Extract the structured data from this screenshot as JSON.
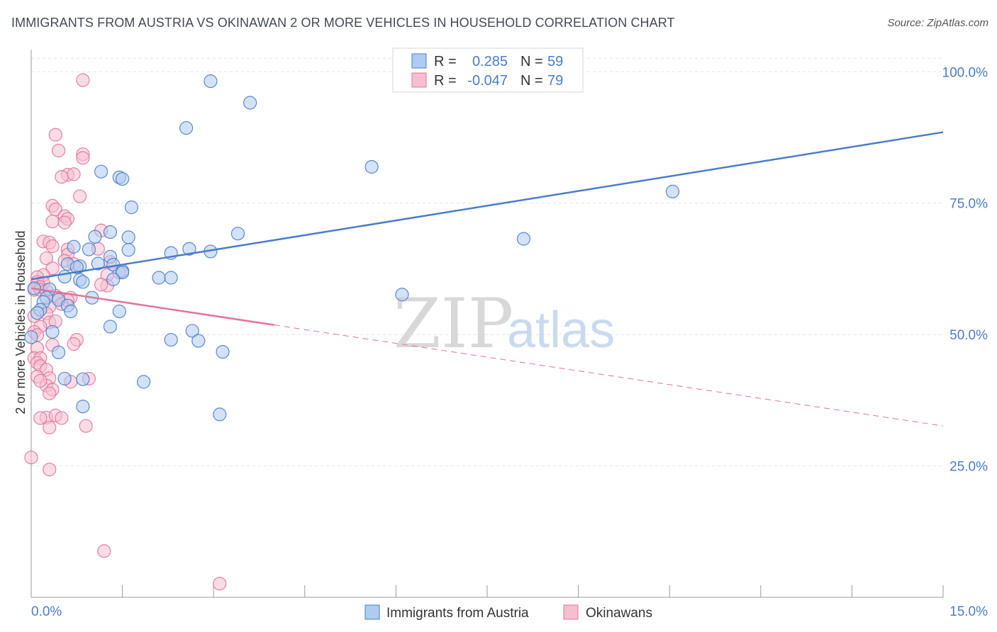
{
  "header": {
    "title": "IMMIGRANTS FROM AUSTRIA VS OKINAWAN 2 OR MORE VEHICLES IN HOUSEHOLD CORRELATION CHART",
    "source": "Source: ZipAtlas.com"
  },
  "watermark": {
    "zip": "ZIP",
    "atlas": "atlas"
  },
  "legend": {
    "rows": [
      {
        "r_label": "R =",
        "r_value": "0.285",
        "n_label": "N =",
        "n_value": "59"
      },
      {
        "r_label": "R =",
        "r_value": "-0.047",
        "n_label": "N =",
        "n_value": "79"
      }
    ]
  },
  "chart_data": {
    "type": "scatter",
    "title": "IMMIGRANTS FROM AUSTRIA VS OKINAWAN 2 OR MORE VEHICLES IN HOUSEHOLD CORRELATION CHART",
    "xlabel": "",
    "ylabel": "2 or more Vehicles in Household",
    "xlim": [
      0,
      15
    ],
    "ylim": [
      0,
      103
    ],
    "x_tick_labels": [
      "0.0%",
      "15.0%"
    ],
    "y_ticks": [
      25,
      50,
      75,
      100
    ],
    "y_tick_labels": [
      "25.0%",
      "50.0%",
      "75.0%",
      "100.0%"
    ],
    "grid": true,
    "legend_position": "bottom",
    "colors": {
      "austria": "#4a7cc9",
      "okinawan": "#e0739a",
      "austria_fill": "#aecbf0",
      "okinawan_fill": "#f6bfd0"
    },
    "series": [
      {
        "name": "Immigrants from Austria",
        "color": "#4a7cc9",
        "r": 0.285,
        "n": 59,
        "trend": {
          "x": [
            0,
            15
          ],
          "y": [
            60.5,
            88.5
          ],
          "style": "solid"
        },
        "points": [
          [
            2.95,
            98.2
          ],
          [
            3.6,
            94.1
          ],
          [
            2.55,
            89.3
          ],
          [
            5.6,
            81.9
          ],
          [
            1.15,
            81.0
          ],
          [
            1.45,
            79.9
          ],
          [
            1.5,
            79.6
          ],
          [
            10.55,
            77.2
          ],
          [
            1.65,
            74.2
          ],
          [
            1.3,
            69.5
          ],
          [
            3.4,
            69.2
          ],
          [
            1.05,
            68.6
          ],
          [
            1.6,
            68.5
          ],
          [
            8.1,
            68.2
          ],
          [
            0.7,
            66.7
          ],
          [
            0.95,
            66.2
          ],
          [
            2.6,
            66.3
          ],
          [
            1.6,
            66.1
          ],
          [
            2.3,
            65.5
          ],
          [
            2.95,
            65.8
          ],
          [
            1.3,
            64.8
          ],
          [
            0.6,
            63.4
          ],
          [
            1.1,
            63.5
          ],
          [
            0.8,
            63.0
          ],
          [
            0.75,
            62.8
          ],
          [
            1.35,
            63.3
          ],
          [
            1.5,
            62.1
          ],
          [
            1.5,
            61.8
          ],
          [
            0.55,
            61.0
          ],
          [
            0.8,
            60.4
          ],
          [
            2.1,
            60.8
          ],
          [
            2.3,
            60.8
          ],
          [
            1.35,
            60.5
          ],
          [
            0.85,
            60.0
          ],
          [
            0.3,
            58.6
          ],
          [
            0.05,
            58.8
          ],
          [
            0.25,
            57.0
          ],
          [
            1.0,
            57.0
          ],
          [
            6.1,
            57.6
          ],
          [
            0.2,
            56.2
          ],
          [
            0.45,
            56.6
          ],
          [
            0.6,
            55.5
          ],
          [
            0.15,
            54.7
          ],
          [
            1.45,
            54.4
          ],
          [
            0.65,
            54.4
          ],
          [
            0.1,
            54.1
          ],
          [
            1.3,
            51.5
          ],
          [
            2.65,
            50.7
          ],
          [
            0.35,
            50.5
          ],
          [
            0.0,
            49.5
          ],
          [
            2.3,
            49.0
          ],
          [
            2.75,
            48.8
          ],
          [
            0.45,
            46.6
          ],
          [
            3.15,
            46.7
          ],
          [
            0.55,
            41.6
          ],
          [
            1.85,
            41.0
          ],
          [
            0.85,
            41.5
          ],
          [
            0.85,
            36.3
          ],
          [
            3.1,
            34.8
          ]
        ]
      },
      {
        "name": "Okinawans",
        "color": "#e0739a",
        "r": -0.047,
        "n": 79,
        "trend": {
          "x": [
            0,
            15
          ],
          "y": [
            58.8,
            32.6
          ],
          "solid_until_x": 4.0
        },
        "points": [
          [
            0.85,
            98.4
          ],
          [
            0.4,
            88.0
          ],
          [
            0.45,
            85.0
          ],
          [
            0.85,
            84.3
          ],
          [
            0.85,
            83.6
          ],
          [
            0.6,
            80.4
          ],
          [
            0.7,
            80.5
          ],
          [
            0.5,
            80.0
          ],
          [
            0.8,
            76.3
          ],
          [
            0.35,
            74.5
          ],
          [
            0.4,
            73.8
          ],
          [
            0.35,
            71.5
          ],
          [
            0.55,
            72.5
          ],
          [
            0.6,
            72.0
          ],
          [
            0.55,
            71.3
          ],
          [
            1.15,
            69.8
          ],
          [
            0.2,
            67.7
          ],
          [
            0.3,
            67.5
          ],
          [
            0.35,
            66.8
          ],
          [
            0.6,
            66.2
          ],
          [
            1.1,
            66.3
          ],
          [
            0.25,
            64.5
          ],
          [
            0.6,
            65.2
          ],
          [
            0.55,
            64.0
          ],
          [
            0.7,
            63.4
          ],
          [
            1.3,
            63.8
          ],
          [
            0.35,
            62.6
          ],
          [
            0.2,
            61.3
          ],
          [
            0.1,
            60.9
          ],
          [
            0.1,
            60.0
          ],
          [
            0.2,
            59.8
          ],
          [
            0.15,
            59.0
          ],
          [
            0.05,
            58.5
          ],
          [
            0.15,
            58.5
          ],
          [
            0.25,
            58.4
          ],
          [
            1.25,
            61.3
          ],
          [
            1.45,
            61.8
          ],
          [
            1.25,
            59.3
          ],
          [
            1.15,
            59.5
          ],
          [
            0.4,
            57.4
          ],
          [
            0.45,
            57.0
          ],
          [
            0.65,
            57.0
          ],
          [
            0.6,
            56.5
          ],
          [
            0.5,
            55.8
          ],
          [
            0.3,
            55.3
          ],
          [
            0.25,
            54.0
          ],
          [
            0.05,
            53.5
          ],
          [
            0.3,
            52.3
          ],
          [
            0.4,
            52.5
          ],
          [
            0.15,
            51.5
          ],
          [
            0.05,
            50.5
          ],
          [
            0.1,
            49.9
          ],
          [
            0.75,
            49.0
          ],
          [
            0.35,
            48.0
          ],
          [
            0.7,
            48.2
          ],
          [
            0.1,
            47.4
          ],
          [
            0.05,
            45.5
          ],
          [
            0.15,
            45.5
          ],
          [
            0.1,
            44.6
          ],
          [
            0.15,
            44.0
          ],
          [
            0.25,
            43.3
          ],
          [
            0.1,
            42.0
          ],
          [
            0.3,
            41.7
          ],
          [
            0.95,
            41.6
          ],
          [
            0.25,
            40.3
          ],
          [
            0.35,
            39.5
          ],
          [
            0.3,
            38.8
          ],
          [
            0.25,
            34.2
          ],
          [
            0.4,
            34.6
          ],
          [
            0.15,
            34.1
          ],
          [
            0.5,
            34.1
          ],
          [
            0.3,
            32.3
          ],
          [
            0.0,
            26.6
          ],
          [
            0.3,
            24.3
          ],
          [
            0.15,
            41.2
          ],
          [
            0.65,
            41.0
          ],
          [
            0.9,
            32.6
          ],
          [
            1.2,
            8.8
          ],
          [
            3.1,
            2.6
          ]
        ]
      }
    ]
  }
}
